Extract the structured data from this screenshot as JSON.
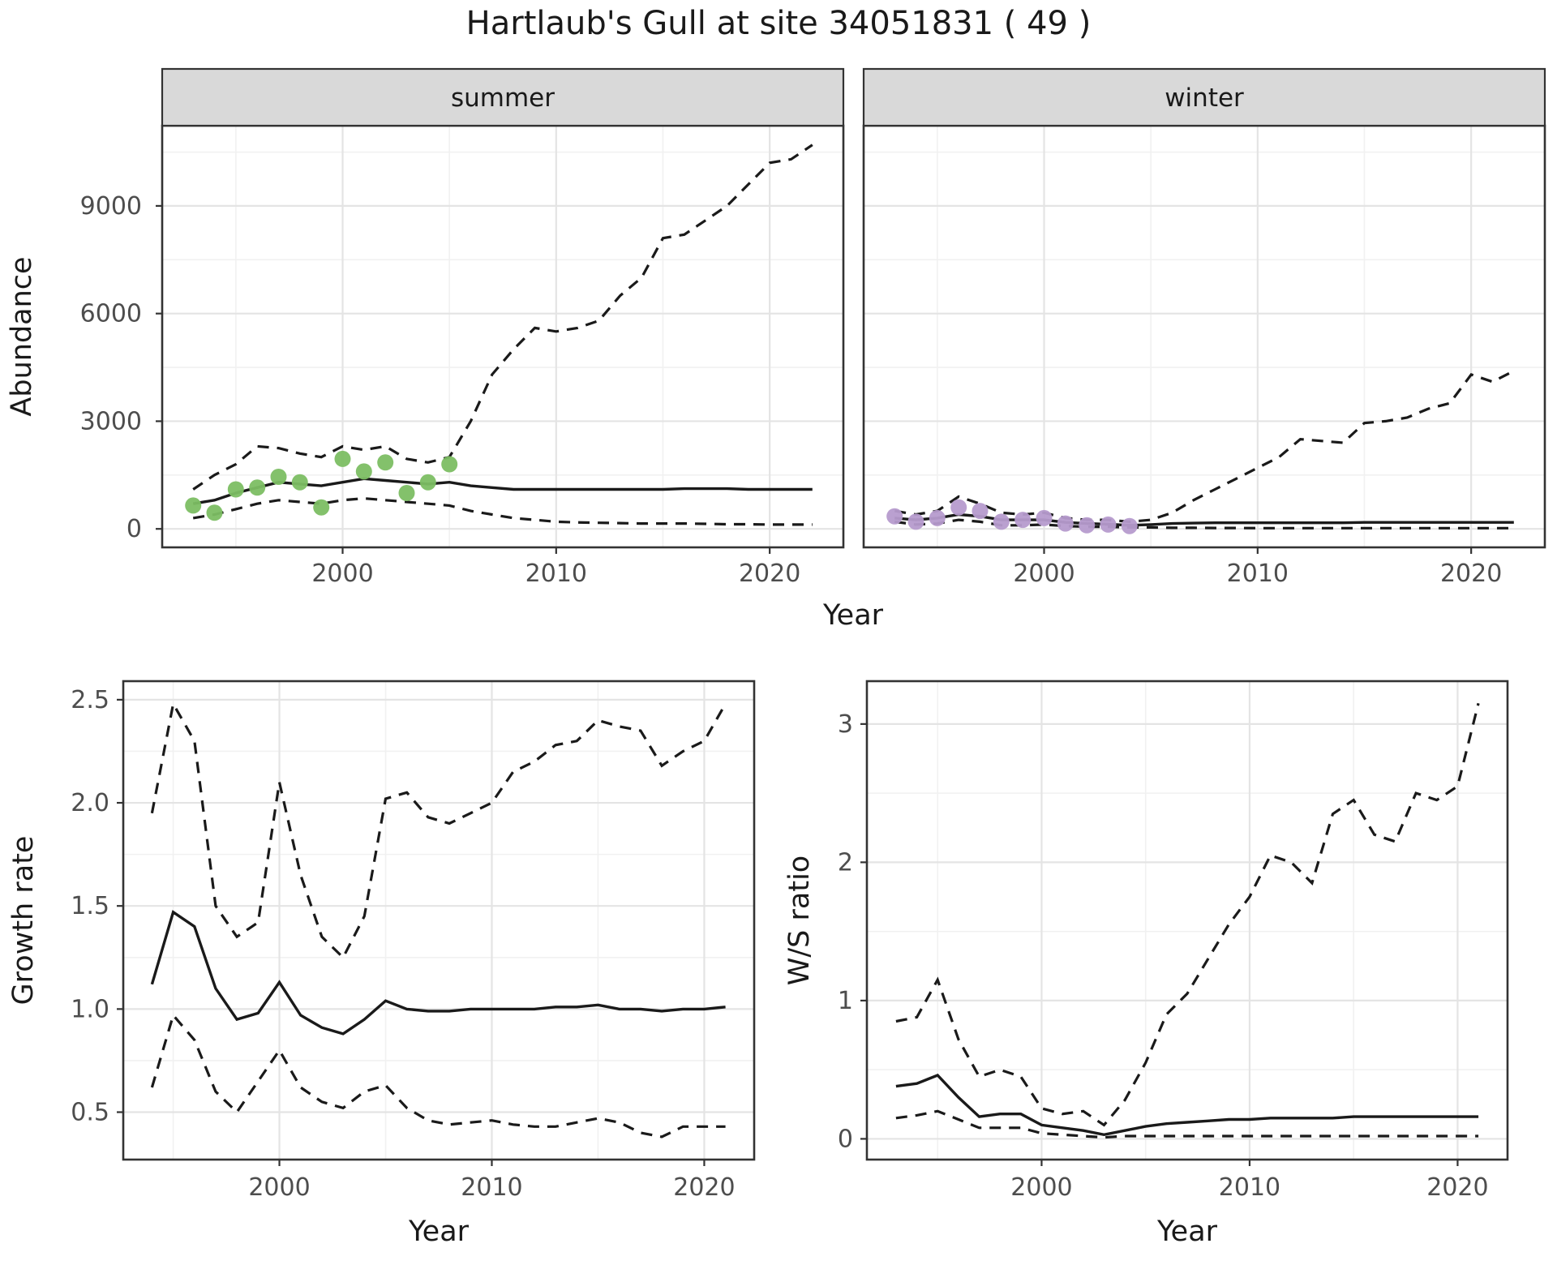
{
  "title": "Hartlaub's Gull at site 34051831 ( 49 )",
  "colors": {
    "summer_point": "#7CBE63",
    "winter_point": "#B69BCD",
    "line": "#1A1A1A",
    "strip_fill": "#D9D9D9",
    "panel_border": "#333333",
    "grid_major": "#E4E4E4",
    "grid_minor": "#F1F1F1",
    "tick_label": "#4D4D4D",
    "axis_title": "#1A1A1A"
  },
  "chart_data": [
    {
      "id": "abundance",
      "type": "line",
      "title": "",
      "xlabel": "Year",
      "ylabel": "Abundance",
      "xlim": [
        1991.55,
        2023.45
      ],
      "ylim": [
        -515,
        11235
      ],
      "xticks": [
        2000,
        2010,
        2020
      ],
      "xtick_labels": [
        "2000",
        "2010",
        "2020"
      ],
      "xminor": [
        1995,
        2005,
        2015
      ],
      "yticks": [
        0,
        3000,
        6000,
        9000
      ],
      "ytick_labels": [
        "0",
        "3000",
        "6000",
        "9000"
      ],
      "yminor": [
        1500,
        4500,
        7500,
        10500
      ],
      "facet_labels": [
        "summer",
        "winter"
      ],
      "facets": [
        {
          "label": "summer",
          "point_color_key": "summer_point",
          "points": {
            "x": [
              1993,
              1994,
              1995,
              1996,
              1997,
              1998,
              1999,
              2000,
              2001,
              2002,
              2003,
              2004,
              2005
            ],
            "y": [
              650,
              450,
              1100,
              1150,
              1450,
              1300,
              600,
              1950,
              1600,
              1850,
              1000,
              1300,
              1800
            ]
          },
          "series": [
            {
              "name": "median",
              "style": "solid",
              "x": [
                1993,
                1994,
                1995,
                1996,
                1997,
                1998,
                1999,
                2000,
                2001,
                2002,
                2003,
                2004,
                2005,
                2006,
                2007,
                2008,
                2009,
                2010,
                2011,
                2012,
                2013,
                2014,
                2015,
                2016,
                2017,
                2018,
                2019,
                2020,
                2021,
                2022
              ],
              "y": [
                700,
                800,
                1000,
                1150,
                1300,
                1250,
                1200,
                1300,
                1400,
                1350,
                1300,
                1250,
                1300,
                1200,
                1150,
                1100,
                1100,
                1100,
                1100,
                1100,
                1100,
                1100,
                1100,
                1120,
                1120,
                1120,
                1100,
                1100,
                1100,
                1100
              ]
            },
            {
              "name": "upper_ci",
              "style": "dashed",
              "x": [
                1993,
                1994,
                1995,
                1996,
                1997,
                1998,
                1999,
                2000,
                2001,
                2002,
                2003,
                2004,
                2005,
                2006,
                2007,
                2008,
                2009,
                2010,
                2011,
                2012,
                2013,
                2014,
                2015,
                2016,
                2017,
                2018,
                2019,
                2020,
                2021,
                2022
              ],
              "y": [
                1100,
                1500,
                1800,
                2300,
                2250,
                2100,
                2000,
                2300,
                2200,
                2300,
                1950,
                1850,
                2000,
                3000,
                4300,
                5000,
                5600,
                5500,
                5600,
                5800,
                6500,
                7000,
                8100,
                8200,
                8600,
                9000,
                9600,
                10200,
                10300,
                10700
              ]
            },
            {
              "name": "lower_ci",
              "style": "dashed",
              "x": [
                1993,
                1994,
                1995,
                1996,
                1997,
                1998,
                1999,
                2000,
                2001,
                2002,
                2003,
                2004,
                2005,
                2006,
                2007,
                2008,
                2009,
                2010,
                2011,
                2012,
                2013,
                2014,
                2015,
                2016,
                2017,
                2018,
                2019,
                2020,
                2021,
                2022
              ],
              "y": [
                300,
                400,
                550,
                700,
                800,
                750,
                700,
                800,
                850,
                800,
                750,
                700,
                650,
                500,
                400,
                300,
                250,
                200,
                180,
                170,
                160,
                150,
                150,
                150,
                140,
                130,
                130,
                120,
                120,
                120
              ]
            }
          ]
        },
        {
          "label": "winter",
          "point_color_key": "winter_point",
          "points": {
            "x": [
              1993,
              1994,
              1995,
              1996,
              1997,
              1998,
              1999,
              2000,
              2001,
              2002,
              2003,
              2004
            ],
            "y": [
              350,
              200,
              300,
              600,
              500,
              200,
              250,
              300,
              150,
              100,
              120,
              80
            ]
          },
          "series": [
            {
              "name": "median",
              "style": "solid",
              "x": [
                1993,
                1994,
                1995,
                1996,
                1997,
                1998,
                1999,
                2000,
                2001,
                2002,
                2003,
                2004,
                2005,
                2006,
                2007,
                2008,
                2009,
                2010,
                2011,
                2012,
                2013,
                2014,
                2015,
                2016,
                2017,
                2018,
                2019,
                2020,
                2021,
                2022
              ],
              "y": [
                300,
                250,
                300,
                400,
                350,
                250,
                250,
                250,
                180,
                150,
                130,
                100,
                120,
                150,
                160,
                170,
                170,
                170,
                170,
                170,
                170,
                170,
                180,
                180,
                180,
                180,
                180,
                180,
                180,
                180
              ]
            },
            {
              "name": "upper_ci",
              "style": "dashed",
              "x": [
                1993,
                1994,
                1995,
                1996,
                1997,
                1998,
                1999,
                2000,
                2001,
                2002,
                2003,
                2004,
                2005,
                2006,
                2007,
                2008,
                2009,
                2010,
                2011,
                2012,
                2013,
                2014,
                2015,
                2016,
                2017,
                2018,
                2019,
                2020,
                2021,
                2022
              ],
              "y": [
                500,
                400,
                500,
                900,
                700,
                450,
                400,
                450,
                300,
                250,
                250,
                200,
                250,
                450,
                800,
                1100,
                1400,
                1700,
                2000,
                2500,
                2450,
                2400,
                2950,
                3000,
                3100,
                3350,
                3500,
                4300,
                4100,
                4400
              ]
            },
            {
              "name": "lower_ci",
              "style": "dashed",
              "x": [
                1993,
                1994,
                1995,
                1996,
                1997,
                1998,
                1999,
                2000,
                2001,
                2002,
                2003,
                2004,
                2005,
                2006,
                2007,
                2008,
                2009,
                2010,
                2011,
                2012,
                2013,
                2014,
                2015,
                2016,
                2017,
                2018,
                2019,
                2020,
                2021,
                2022
              ],
              "y": [
                200,
                120,
                150,
                250,
                200,
                100,
                100,
                120,
                80,
                60,
                60,
                40,
                40,
                30,
                30,
                25,
                25,
                20,
                20,
                20,
                20,
                20,
                20,
                20,
                20,
                20,
                20,
                20,
                20,
                20
              ]
            }
          ]
        }
      ]
    },
    {
      "id": "growth_rate",
      "type": "line",
      "xlabel": "Year",
      "ylabel": "Growth rate",
      "xlim": [
        1992.65,
        2022.35
      ],
      "ylim": [
        0.27,
        2.59
      ],
      "xticks": [
        2000,
        2010,
        2020
      ],
      "xtick_labels": [
        "2000",
        "2010",
        "2020"
      ],
      "xminor": [
        1995,
        2005,
        2015
      ],
      "yticks": [
        0.5,
        1.0,
        1.5,
        2.0,
        2.5
      ],
      "ytick_labels": [
        "0.5",
        "1.0",
        "1.5",
        "2.0",
        "2.5"
      ],
      "yminor": [
        0.75,
        1.25,
        1.75,
        2.25
      ],
      "series": [
        {
          "name": "median",
          "style": "solid",
          "x": [
            1994,
            1995,
            1996,
            1997,
            1998,
            1999,
            2000,
            2001,
            2002,
            2003,
            2004,
            2005,
            2006,
            2007,
            2008,
            2009,
            2010,
            2011,
            2012,
            2013,
            2014,
            2015,
            2016,
            2017,
            2018,
            2019,
            2020,
            2021
          ],
          "y": [
            1.12,
            1.47,
            1.4,
            1.1,
            0.95,
            0.98,
            1.13,
            0.97,
            0.91,
            0.88,
            0.95,
            1.04,
            1.0,
            0.99,
            0.99,
            1.0,
            1.0,
            1.0,
            1.0,
            1.01,
            1.01,
            1.02,
            1.0,
            1.0,
            0.99,
            1.0,
            1.0,
            1.01
          ]
        },
        {
          "name": "upper_ci",
          "style": "dashed",
          "x": [
            1994,
            1995,
            1996,
            1997,
            1998,
            1999,
            2000,
            2001,
            2002,
            2003,
            2004,
            2005,
            2006,
            2007,
            2008,
            2009,
            2010,
            2011,
            2012,
            2013,
            2014,
            2015,
            2016,
            2017,
            2018,
            2019,
            2020,
            2021
          ],
          "y": [
            1.95,
            2.48,
            2.3,
            1.5,
            1.35,
            1.42,
            2.1,
            1.65,
            1.35,
            1.25,
            1.45,
            2.02,
            2.05,
            1.93,
            1.9,
            1.95,
            2.0,
            2.15,
            2.2,
            2.28,
            2.3,
            2.4,
            2.37,
            2.35,
            2.18,
            2.25,
            2.3,
            2.48
          ]
        },
        {
          "name": "lower_ci",
          "style": "dashed",
          "x": [
            1994,
            1995,
            1996,
            1997,
            1998,
            1999,
            2000,
            2001,
            2002,
            2003,
            2004,
            2005,
            2006,
            2007,
            2008,
            2009,
            2010,
            2011,
            2012,
            2013,
            2014,
            2015,
            2016,
            2017,
            2018,
            2019,
            2020,
            2021
          ],
          "y": [
            0.62,
            0.97,
            0.85,
            0.6,
            0.5,
            0.65,
            0.8,
            0.62,
            0.55,
            0.52,
            0.6,
            0.63,
            0.52,
            0.46,
            0.44,
            0.45,
            0.46,
            0.44,
            0.43,
            0.43,
            0.45,
            0.47,
            0.45,
            0.4,
            0.38,
            0.43,
            0.43,
            0.43
          ]
        }
      ]
    },
    {
      "id": "ws_ratio",
      "type": "line",
      "xlabel": "Year",
      "ylabel": "W/S ratio",
      "xlim": [
        1991.6,
        2022.4
      ],
      "ylim": [
        -0.15,
        3.31
      ],
      "xticks": [
        2000,
        2010,
        2020
      ],
      "xtick_labels": [
        "2000",
        "2010",
        "2020"
      ],
      "xminor": [
        1995,
        2005,
        2015
      ],
      "yticks": [
        0,
        1,
        2,
        3
      ],
      "ytick_labels": [
        "0",
        "1",
        "2",
        "3"
      ],
      "yminor": [
        0.5,
        1.5,
        2.5
      ],
      "series": [
        {
          "name": "median",
          "style": "solid",
          "x": [
            1993,
            1994,
            1995,
            1996,
            1997,
            1998,
            1999,
            2000,
            2001,
            2002,
            2003,
            2004,
            2005,
            2006,
            2007,
            2008,
            2009,
            2010,
            2011,
            2012,
            2013,
            2014,
            2015,
            2016,
            2017,
            2018,
            2019,
            2020,
            2021
          ],
          "y": [
            0.38,
            0.4,
            0.46,
            0.3,
            0.16,
            0.18,
            0.18,
            0.1,
            0.08,
            0.06,
            0.03,
            0.06,
            0.09,
            0.11,
            0.12,
            0.13,
            0.14,
            0.14,
            0.15,
            0.15,
            0.15,
            0.15,
            0.16,
            0.16,
            0.16,
            0.16,
            0.16,
            0.16,
            0.16
          ]
        },
        {
          "name": "upper_ci",
          "style": "dashed",
          "x": [
            1993,
            1994,
            1995,
            1996,
            1997,
            1998,
            1999,
            2000,
            2001,
            2002,
            2003,
            2004,
            2005,
            2006,
            2007,
            2008,
            2009,
            2010,
            2011,
            2012,
            2013,
            2014,
            2015,
            2016,
            2017,
            2018,
            2019,
            2020,
            2021
          ],
          "y": [
            0.85,
            0.88,
            1.15,
            0.72,
            0.45,
            0.5,
            0.45,
            0.22,
            0.18,
            0.2,
            0.1,
            0.28,
            0.55,
            0.9,
            1.05,
            1.3,
            1.55,
            1.75,
            2.05,
            2.0,
            1.85,
            2.35,
            2.45,
            2.2,
            2.15,
            2.5,
            2.45,
            2.55,
            3.15
          ]
        },
        {
          "name": "lower_ci",
          "style": "dashed",
          "x": [
            1993,
            1994,
            1995,
            1996,
            1997,
            1998,
            1999,
            2000,
            2001,
            2002,
            2003,
            2004,
            2005,
            2006,
            2007,
            2008,
            2009,
            2010,
            2011,
            2012,
            2013,
            2014,
            2015,
            2016,
            2017,
            2018,
            2019,
            2020,
            2021
          ],
          "y": [
            0.15,
            0.17,
            0.2,
            0.14,
            0.08,
            0.08,
            0.08,
            0.04,
            0.03,
            0.02,
            0.01,
            0.02,
            0.02,
            0.02,
            0.02,
            0.02,
            0.02,
            0.02,
            0.02,
            0.02,
            0.02,
            0.02,
            0.02,
            0.02,
            0.02,
            0.02,
            0.02,
            0.02,
            0.02
          ]
        }
      ]
    }
  ]
}
